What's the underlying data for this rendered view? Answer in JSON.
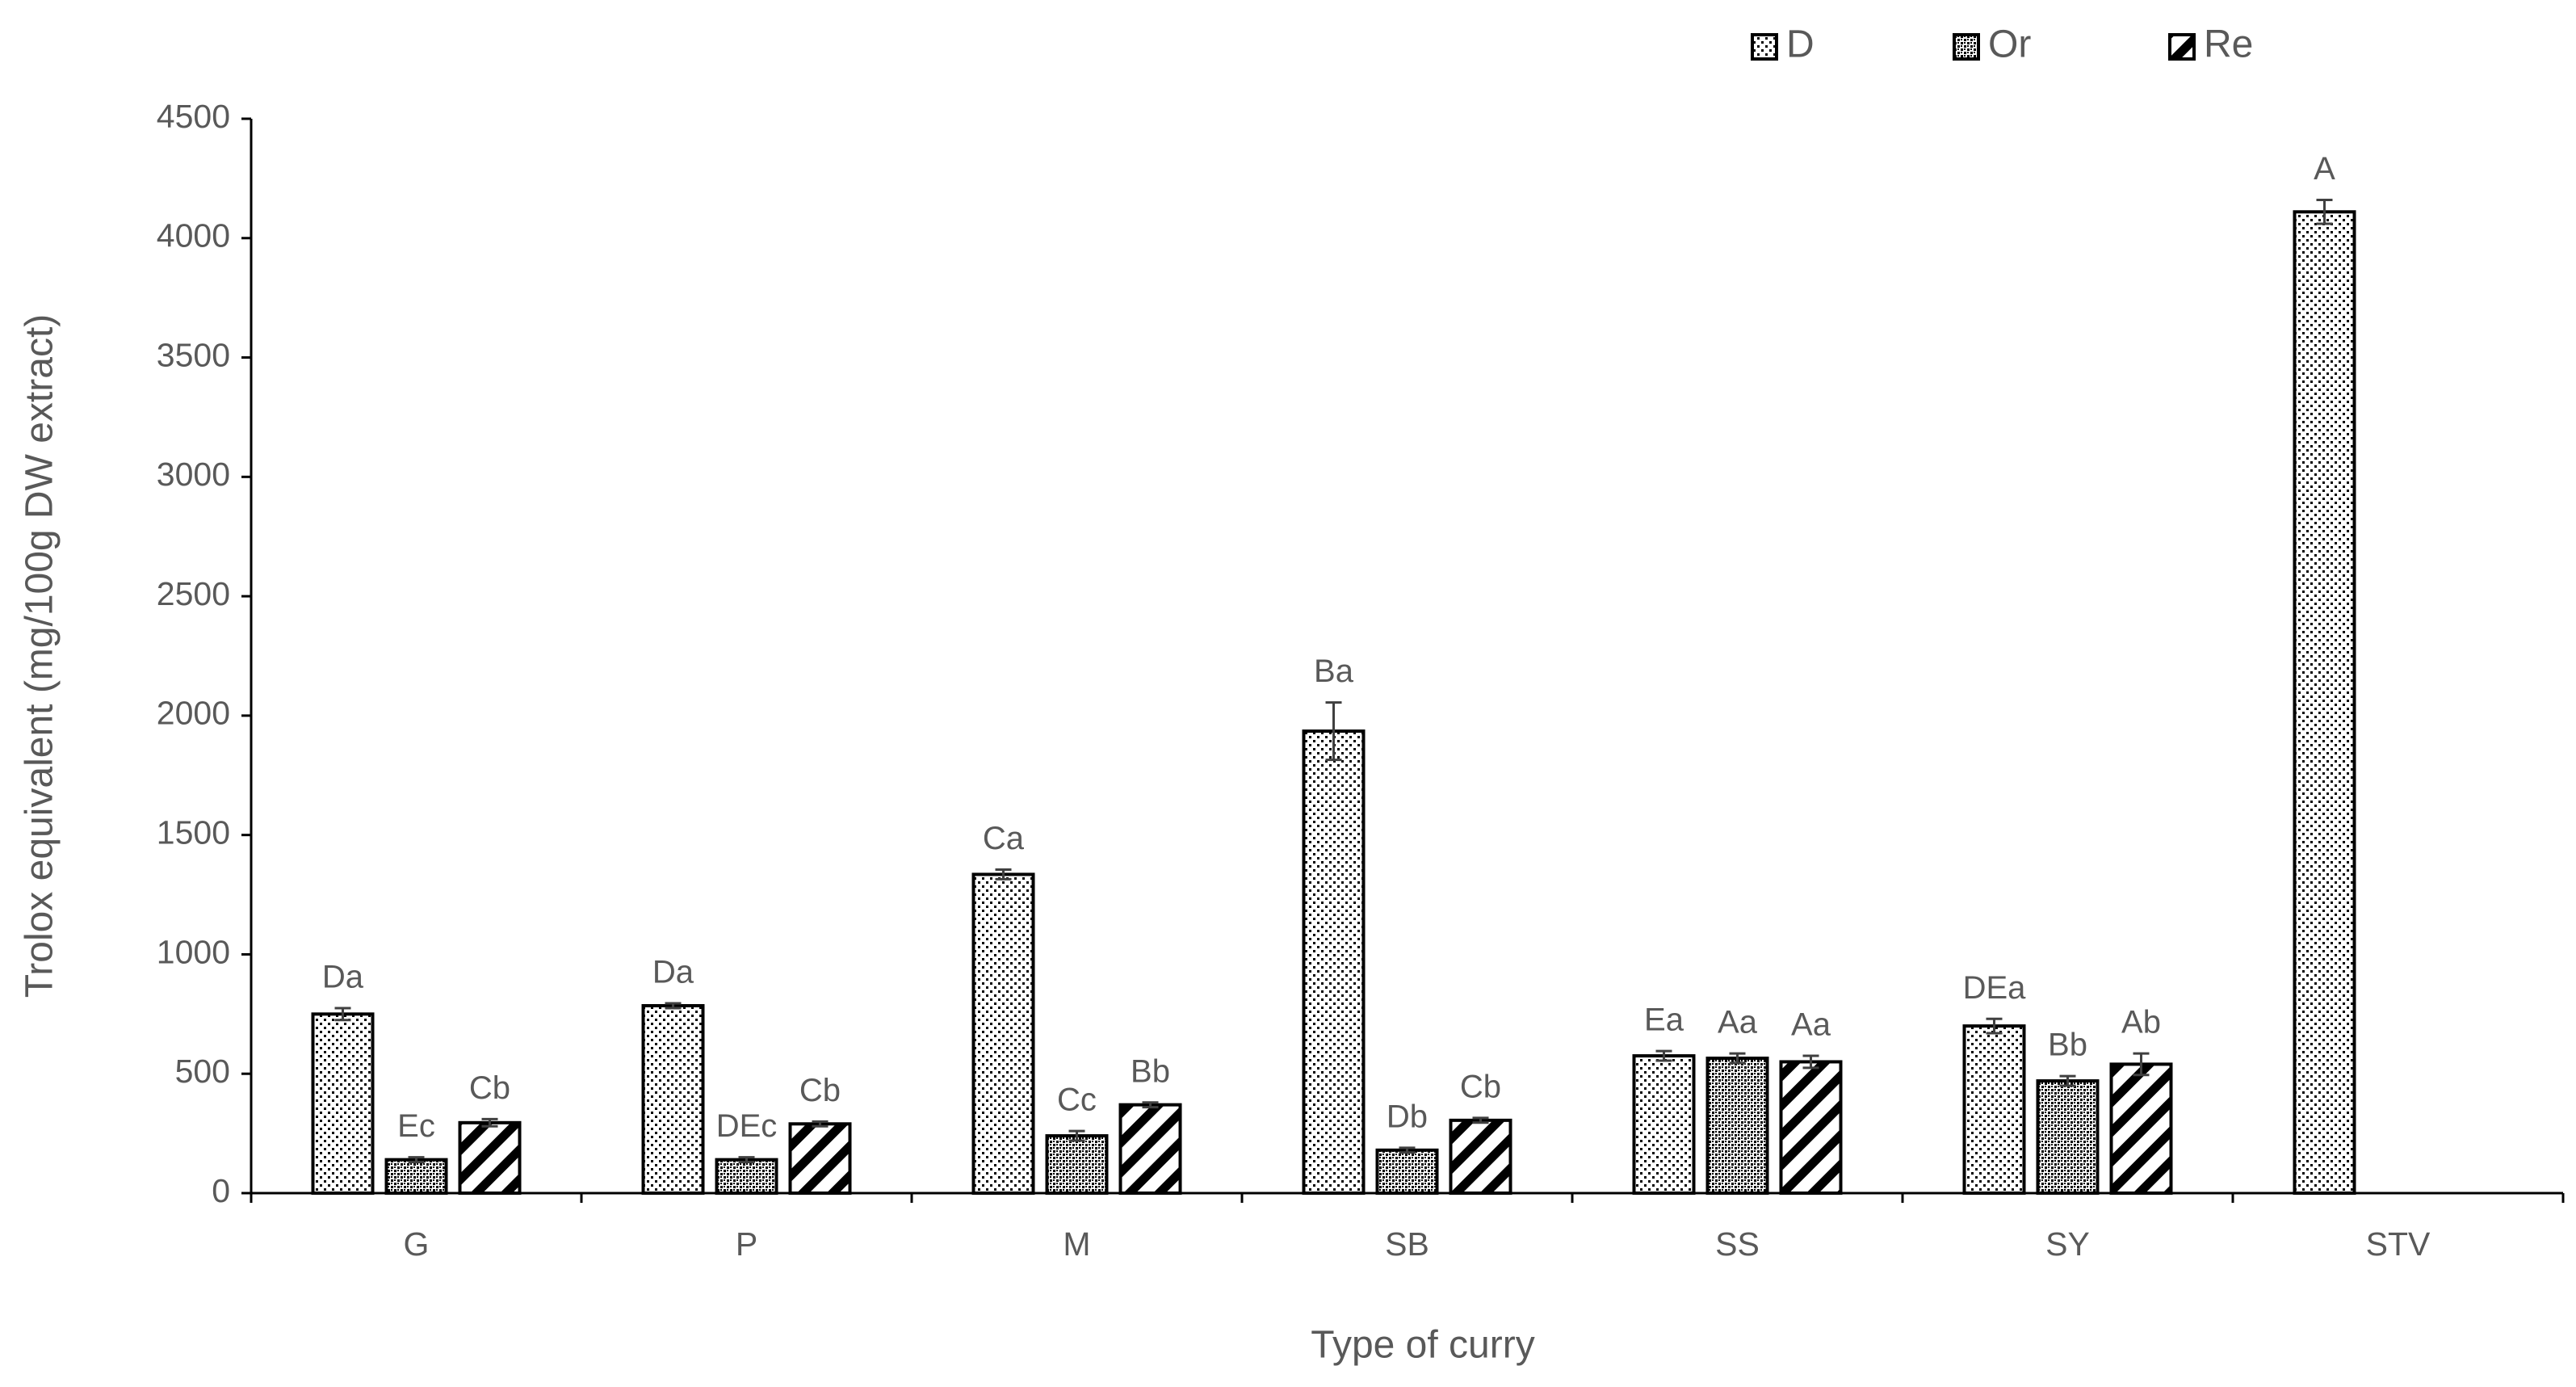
{
  "chart_data": {
    "type": "bar",
    "x_label": "Type of curry",
    "y_label": "Trolox equivalent (mg/100g DW extract)",
    "categories": [
      "G",
      "P",
      "M",
      "SB",
      "SS",
      "SY",
      "STV"
    ],
    "series": [
      {
        "name": "D",
        "color": "#000000",
        "pattern": "dots",
        "values": [
          750,
          785,
          1335,
          1935,
          575,
          700,
          4110
        ],
        "errors": [
          25,
          10,
          20,
          120,
          20,
          30,
          50
        ],
        "labels": [
          "Da",
          "Da",
          "Ca",
          "Ba",
          "Ea",
          "DEa",
          "A"
        ]
      },
      {
        "name": "Or",
        "color": "#000000",
        "pattern": "dense-dots",
        "values": [
          140,
          140,
          240,
          180,
          565,
          470,
          null
        ],
        "errors": [
          10,
          10,
          20,
          10,
          20,
          20,
          null
        ],
        "labels": [
          "Ec",
          "DEc",
          "Cc",
          "Db",
          "Aa",
          "Bb",
          null
        ]
      },
      {
        "name": "Re",
        "color": "#000000",
        "pattern": "stripes",
        "values": [
          295,
          290,
          370,
          305,
          550,
          540,
          null
        ],
        "errors": [
          15,
          10,
          10,
          10,
          25,
          45,
          null
        ],
        "labels": [
          "Cb",
          "Cb",
          "Bb",
          "Cb",
          "Aa",
          "Ab",
          null
        ]
      }
    ],
    "ylim": [
      0,
      4500
    ],
    "yticks": [
      0,
      500,
      1000,
      1500,
      2000,
      2500,
      3000,
      3500,
      4000,
      4500
    ],
    "grid": false,
    "legend": "top-right"
  }
}
